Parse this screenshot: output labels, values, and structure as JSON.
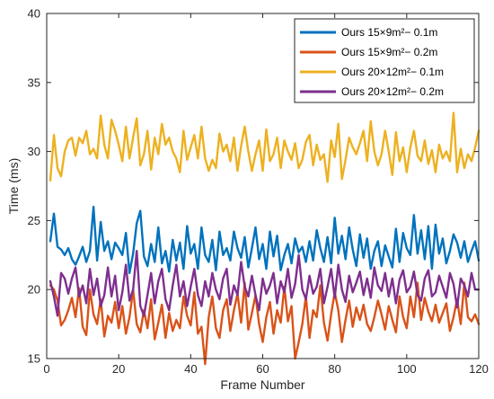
{
  "chart_data": {
    "type": "line",
    "xlabel": "Frame Number",
    "ylabel": "Time (ms)",
    "xlim": [
      0,
      120
    ],
    "ylim": [
      15,
      40
    ],
    "xticks": [
      0,
      20,
      40,
      60,
      80,
      100,
      120
    ],
    "yticks": [
      15,
      20,
      25,
      30,
      35,
      40
    ],
    "grid": false,
    "legend_position": "top-right",
    "x": [
      1,
      2,
      3,
      4,
      5,
      6,
      7,
      8,
      9,
      10,
      11,
      12,
      13,
      14,
      15,
      16,
      17,
      18,
      19,
      20,
      21,
      22,
      23,
      24,
      25,
      26,
      27,
      28,
      29,
      30,
      31,
      32,
      33,
      34,
      35,
      36,
      37,
      38,
      39,
      40,
      41,
      42,
      43,
      44,
      45,
      46,
      47,
      48,
      49,
      50,
      51,
      52,
      53,
      54,
      55,
      56,
      57,
      58,
      59,
      60,
      61,
      62,
      63,
      64,
      65,
      66,
      67,
      68,
      69,
      70,
      71,
      72,
      73,
      74,
      75,
      76,
      77,
      78,
      79,
      80,
      81,
      82,
      83,
      84,
      85,
      86,
      87,
      88,
      89,
      90,
      91,
      92,
      93,
      94,
      95,
      96,
      97,
      98,
      99,
      100,
      101,
      102,
      103,
      104,
      105,
      106,
      107,
      108,
      109,
      110,
      111,
      112,
      113,
      114,
      115,
      116,
      117,
      118,
      119,
      120
    ],
    "series": [
      {
        "name": "Ours 15×9m²− 0.1m",
        "color": "#0072BD",
        "values": [
          23.5,
          25.5,
          23.1,
          22.9,
          22.5,
          23.0,
          22.2,
          21.8,
          22.4,
          23.1,
          22.0,
          22.8,
          26.0,
          22.1,
          24.9,
          22.8,
          23.5,
          22.2,
          23.4,
          23.0,
          22.5,
          24.1,
          21.2,
          22.6,
          24.8,
          25.7,
          22.4,
          21.7,
          23.3,
          22.0,
          24.5,
          21.9,
          22.8,
          21.3,
          23.6,
          22.1,
          23.4,
          21.5,
          24.6,
          22.6,
          23.3,
          21.5,
          24.5,
          22.5,
          22.0,
          23.6,
          21.4,
          24.2,
          22.5,
          23.0,
          22.1,
          24.2,
          23.0,
          22.3,
          23.8,
          21.6,
          23.0,
          24.5,
          22.2,
          23.3,
          21.5,
          24.2,
          22.4,
          23.9,
          21.4,
          22.5,
          23.3,
          21.9,
          23.7,
          22.7,
          23.1,
          22.0,
          23.5,
          22.1,
          24.3,
          23.0,
          22.0,
          23.8,
          21.9,
          25.2,
          22.6,
          23.9,
          22.2,
          24.5,
          22.9,
          21.7,
          24.0,
          22.3,
          23.7,
          21.5,
          22.8,
          23.5,
          21.7,
          23.2,
          22.4,
          21.6,
          24.4,
          22.0,
          24.1,
          23.0,
          22.5,
          25.4,
          22.6,
          24.3,
          22.2,
          24.6,
          21.5,
          24.7,
          22.6,
          23.7,
          21.9,
          22.8,
          24.0,
          23.4,
          22.3,
          23.5,
          22.0,
          22.8,
          23.5,
          22.1
        ]
      },
      {
        "name": "Ours 15×9m²− 0.2m",
        "color": "#D95319",
        "values": [
          20.3,
          20.0,
          19.2,
          17.4,
          17.8,
          18.5,
          19.4,
          18.0,
          20.1,
          17.3,
          16.7,
          20.0,
          18.2,
          17.5,
          19.3,
          16.6,
          18.1,
          17.6,
          19.1,
          17.2,
          18.8,
          16.8,
          18.0,
          20.0,
          17.5,
          16.9,
          18.5,
          17.2,
          19.3,
          16.4,
          17.6,
          18.9,
          16.5,
          18.3,
          17.0,
          17.8,
          17.2,
          19.5,
          18.1,
          17.4,
          19.8,
          16.8,
          17.3,
          14.6,
          18.0,
          19.5,
          17.2,
          16.5,
          18.5,
          19.3,
          17.0,
          18.5,
          19.7,
          17.6,
          20.5,
          17.1,
          18.3,
          19.6,
          17.5,
          16.2,
          18.0,
          19.1,
          16.8,
          18.5,
          17.6,
          20.2,
          17.7,
          18.8,
          15.0,
          16.2,
          17.5,
          19.5,
          16.5,
          18.5,
          18.0,
          20.3,
          17.6,
          16.3,
          18.2,
          19.8,
          18.5,
          16.2,
          17.8,
          19.2,
          17.3,
          18.7,
          17.8,
          18.9,
          17.5,
          17.0,
          18.0,
          19.2,
          18.2,
          17.1,
          18.8,
          17.8,
          16.9,
          19.5,
          18.0,
          17.2,
          19.5,
          18.0,
          20.5,
          17.8,
          19.4,
          18.4,
          17.7,
          18.9,
          17.6,
          18.3,
          19.0,
          17.0,
          18.0,
          19.3,
          17.5,
          20.5,
          18.0,
          17.7,
          18.2,
          17.5
        ]
      },
      {
        "name": "Ours 20×12m²− 0.1m",
        "color": "#EDB120",
        "values": [
          27.9,
          31.2,
          28.8,
          28.2,
          30.0,
          30.8,
          31.0,
          29.7,
          31.0,
          30.6,
          31.5,
          29.8,
          30.2,
          29.5,
          32.6,
          30.5,
          29.5,
          32.3,
          31.5,
          30.5,
          29.3,
          31.8,
          29.5,
          31.0,
          32.4,
          29.0,
          29.8,
          31.5,
          28.7,
          31.0,
          29.8,
          32.0,
          30.5,
          31.0,
          30.0,
          29.5,
          28.5,
          31.5,
          29.4,
          30.3,
          31.2,
          29.5,
          31.8,
          29.5,
          28.6,
          29.4,
          28.8,
          31.3,
          30.0,
          30.5,
          29.3,
          31.0,
          28.6,
          30.4,
          31.8,
          30.0,
          28.6,
          29.8,
          30.8,
          28.6,
          31.6,
          29.3,
          29.8,
          31.0,
          28.8,
          30.8,
          30.0,
          29.4,
          30.6,
          28.8,
          29.4,
          30.7,
          31.2,
          29.0,
          30.5,
          29.4,
          29.8,
          27.8,
          30.8,
          29.6,
          32.0,
          28.0,
          29.4,
          31.0,
          30.3,
          29.8,
          30.6,
          31.5,
          29.3,
          32.2,
          30.0,
          29.0,
          29.8,
          31.5,
          30.0,
          28.3,
          31.4,
          29.3,
          30.3,
          28.5,
          30.3,
          31.5,
          29.7,
          29.3,
          30.8,
          29.1,
          30.1,
          28.5,
          30.5,
          29.5,
          30.0,
          29.3,
          32.8,
          28.5,
          30.2,
          28.8,
          29.8,
          29.3,
          30.3,
          31.5
        ]
      },
      {
        "name": "Ours 20×12m²− 0.2m",
        "color": "#7E2F8E",
        "values": [
          20.6,
          19.5,
          18.1,
          21.2,
          20.8,
          19.7,
          20.8,
          21.6,
          19.5,
          20.3,
          19.0,
          21.5,
          19.6,
          20.8,
          18.8,
          19.6,
          21.6,
          19.5,
          21.0,
          18.5,
          19.8,
          21.8,
          19.2,
          20.0,
          22.8,
          18.8,
          18.1,
          19.6,
          21.2,
          19.0,
          20.6,
          21.5,
          19.3,
          18.5,
          20.3,
          21.8,
          19.5,
          20.6,
          18.8,
          20.2,
          21.5,
          19.6,
          18.8,
          20.6,
          19.5,
          21.2,
          20.0,
          19.3,
          20.8,
          21.5,
          18.9,
          20.3,
          19.6,
          22.0,
          20.2,
          19.5,
          21.0,
          19.6,
          18.5,
          20.8,
          19.7,
          20.3,
          21.2,
          19.0,
          20.6,
          19.8,
          21.5,
          19.4,
          20.4,
          22.5,
          20.0,
          19.3,
          21.0,
          19.7,
          20.2,
          21.5,
          19.0,
          20.2,
          21.5,
          19.4,
          21.8,
          20.0,
          19.1,
          21.0,
          19.8,
          20.5,
          21.3,
          19.6,
          20.8,
          19.4,
          21.6,
          20.3,
          19.9,
          21.2,
          19.5,
          20.8,
          19.0,
          20.7,
          21.4,
          19.8,
          20.2,
          21.3,
          19.6,
          19.2,
          20.8,
          21.4,
          19.5,
          19.8,
          21.0,
          20.2,
          19.4,
          21.2,
          20.4,
          18.7,
          20.8,
          20.3,
          19.5,
          21.2,
          20.0,
          20.0
        ]
      }
    ]
  }
}
